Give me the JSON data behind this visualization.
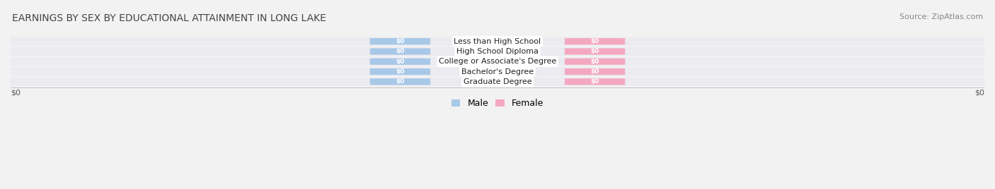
{
  "title": "EARNINGS BY SEX BY EDUCATIONAL ATTAINMENT IN LONG LAKE",
  "source": "Source: ZipAtlas.com",
  "categories": [
    "Less than High School",
    "High School Diploma",
    "College or Associate's Degree",
    "Bachelor's Degree",
    "Graduate Degree"
  ],
  "male_values": [
    0,
    0,
    0,
    0,
    0
  ],
  "female_values": [
    0,
    0,
    0,
    0,
    0
  ],
  "male_color": "#a8c8e8",
  "female_color": "#f4a8c0",
  "male_label": "Male",
  "female_label": "Female",
  "bar_label": "$0",
  "background_color": "#f2f2f2",
  "row_bg_light": "#ebebf0",
  "title_fontsize": 10,
  "source_fontsize": 8,
  "axis_label": "$0"
}
